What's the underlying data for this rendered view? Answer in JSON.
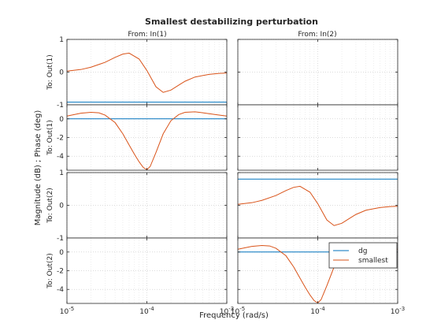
{
  "chart_data": {
    "type": "line",
    "title": "Smallest destabilizing perturbation",
    "xlabel": "Frequency  (rad/s)",
    "ylabel": "Magnitude (dB) ; Phase (deg)",
    "x_scale": "log",
    "xlim": [
      1e-05,
      0.001
    ],
    "x_ticks": [
      {
        "base": "10",
        "exp": "-5",
        "value": 1e-05
      },
      {
        "base": "10",
        "exp": "-4",
        "value": 0.0001
      },
      {
        "base": "10",
        "exp": "-3",
        "value": 0.001
      }
    ],
    "column_headers": [
      "From: In(1)",
      "From: In(2)"
    ],
    "row_labels": [
      "To: Out(1)",
      "To: Out(1)",
      "To: Out(2)",
      "To: Out(2)"
    ],
    "rows": [
      {
        "kind": "magnitude",
        "ylim": [
          -1,
          1
        ],
        "yticks": [
          1,
          0,
          -1
        ]
      },
      {
        "kind": "phase",
        "ylim": [
          -5.5,
          1.5
        ],
        "yticks": [
          0,
          -2,
          -4
        ]
      },
      {
        "kind": "magnitude",
        "ylim": [
          -1,
          1
        ],
        "yticks": [
          1,
          0,
          -1
        ]
      },
      {
        "kind": "phase",
        "ylim": [
          -5.5,
          1.5
        ],
        "yticks": [
          0,
          -2,
          -4
        ]
      }
    ],
    "grid": true,
    "legend": {
      "position": "lower-right",
      "entries": [
        "dg",
        "smallest"
      ]
    },
    "series": [
      {
        "name": "dg",
        "color": "#0072BD",
        "panels": [
          {
            "row": 0,
            "col": 0,
            "x": [
              1e-05,
              0.001
            ],
            "y": [
              -0.92,
              -0.92
            ]
          },
          {
            "row": 1,
            "col": 0,
            "x": [
              1e-05,
              0.001
            ],
            "y": [
              0,
              0
            ]
          },
          {
            "row": 2,
            "col": 1,
            "x": [
              1e-05,
              0.001
            ],
            "y": [
              0.8,
              0.8
            ]
          },
          {
            "row": 3,
            "col": 1,
            "x": [
              1e-05,
              0.001
            ],
            "y": [
              0,
              0
            ]
          }
        ]
      },
      {
        "name": "smallest",
        "color": "#D95319",
        "panels": [
          {
            "row": 0,
            "col": 0,
            "x": [
              1e-05,
              1.5e-05,
              2e-05,
              3e-05,
              4e-05,
              5e-05,
              6e-05,
              8e-05,
              0.0001,
              0.00013,
              0.00016,
              0.0002,
              0.00025,
              0.0003,
              0.0004,
              0.0006,
              0.0008,
              0.001
            ],
            "y": [
              0.03,
              0.08,
              0.15,
              0.3,
              0.45,
              0.55,
              0.58,
              0.4,
              0.05,
              -0.45,
              -0.62,
              -0.55,
              -0.4,
              -0.28,
              -0.15,
              -0.07,
              -0.04,
              -0.03
            ]
          },
          {
            "row": 1,
            "col": 0,
            "x": [
              1e-05,
              1.5e-05,
              2e-05,
              2.5e-05,
              3e-05,
              4e-05,
              5e-05,
              6e-05,
              7e-05,
              8e-05,
              9e-05,
              0.0001,
              0.00011,
              0.00013,
              0.00016,
              0.0002,
              0.00025,
              0.0003,
              0.0004,
              0.0005,
              0.0006,
              0.0008,
              0.001
            ],
            "y": [
              0.3,
              0.6,
              0.7,
              0.65,
              0.4,
              -0.4,
              -1.6,
              -2.8,
              -3.8,
              -4.6,
              -5.2,
              -5.45,
              -5.1,
              -3.6,
              -1.6,
              -0.2,
              0.45,
              0.7,
              0.75,
              0.65,
              0.55,
              0.4,
              0.3
            ]
          },
          {
            "row": 2,
            "col": 1,
            "x": [
              1e-05,
              1.5e-05,
              2e-05,
              3e-05,
              4e-05,
              5e-05,
              6e-05,
              8e-05,
              0.0001,
              0.00013,
              0.00016,
              0.0002,
              0.00025,
              0.0003,
              0.0004,
              0.0006,
              0.0008,
              0.001
            ],
            "y": [
              0.03,
              0.08,
              0.15,
              0.3,
              0.45,
              0.55,
              0.58,
              0.4,
              0.05,
              -0.45,
              -0.62,
              -0.55,
              -0.4,
              -0.28,
              -0.15,
              -0.07,
              -0.04,
              -0.03
            ]
          },
          {
            "row": 3,
            "col": 1,
            "x": [
              1e-05,
              1.5e-05,
              2e-05,
              2.5e-05,
              3e-05,
              4e-05,
              5e-05,
              6e-05,
              7e-05,
              8e-05,
              9e-05,
              0.0001,
              0.00011,
              0.00013,
              0.00016,
              0.0002,
              0.00025,
              0.0003,
              0.0004,
              0.0005,
              0.0006,
              0.0008,
              0.001
            ],
            "y": [
              0.3,
              0.6,
              0.7,
              0.65,
              0.4,
              -0.4,
              -1.6,
              -2.8,
              -3.8,
              -4.6,
              -5.2,
              -5.45,
              -5.1,
              -3.6,
              -1.6,
              -0.2,
              0.45,
              0.7,
              0.75,
              0.65,
              0.55,
              0.4,
              0.3
            ]
          }
        ]
      }
    ]
  }
}
